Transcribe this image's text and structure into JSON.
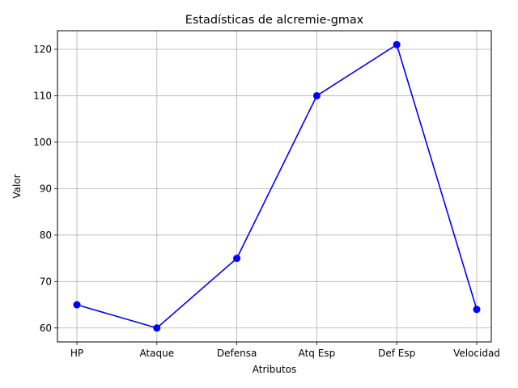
{
  "chart_data": {
    "type": "line",
    "title": "Estadísticas de alcremie-gmax",
    "xlabel": "Atributos",
    "ylabel": "Valor",
    "categories": [
      "HP",
      "Ataque",
      "Defensa",
      "Atq Esp",
      "Def Esp",
      "Velocidad"
    ],
    "values": [
      65,
      60,
      75,
      110,
      121,
      64
    ],
    "ylim": [
      57,
      124
    ],
    "yticks": [
      "60",
      "70",
      "80",
      "90",
      "100",
      "110",
      "120"
    ],
    "grid": true,
    "line_color": "#0000ff",
    "marker_color": "#0000ff",
    "marker": "circle"
  }
}
